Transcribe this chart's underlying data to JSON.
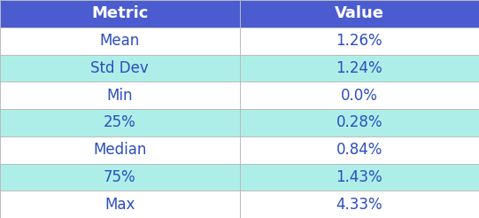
{
  "headers": [
    "Metric",
    "Value"
  ],
  "rows": [
    [
      "Mean",
      "1.26%"
    ],
    [
      "Std Dev",
      "1.24%"
    ],
    [
      "Min",
      "0.0%"
    ],
    [
      "25%",
      "0.28%"
    ],
    [
      "Median",
      "0.84%"
    ],
    [
      "75%",
      "1.43%"
    ],
    [
      "Max",
      "4.33%"
    ]
  ],
  "header_bg": "#4A5CD0",
  "header_text": "#FFFFFF",
  "row_bg_odd": "#FFFFFF",
  "row_bg_even": "#AEEEE8",
  "row_text": "#2B4DC0",
  "border_color": "#BBBBBB",
  "header_fontsize": 13,
  "row_fontsize": 12,
  "col_splits": [
    0.5,
    0.5
  ]
}
